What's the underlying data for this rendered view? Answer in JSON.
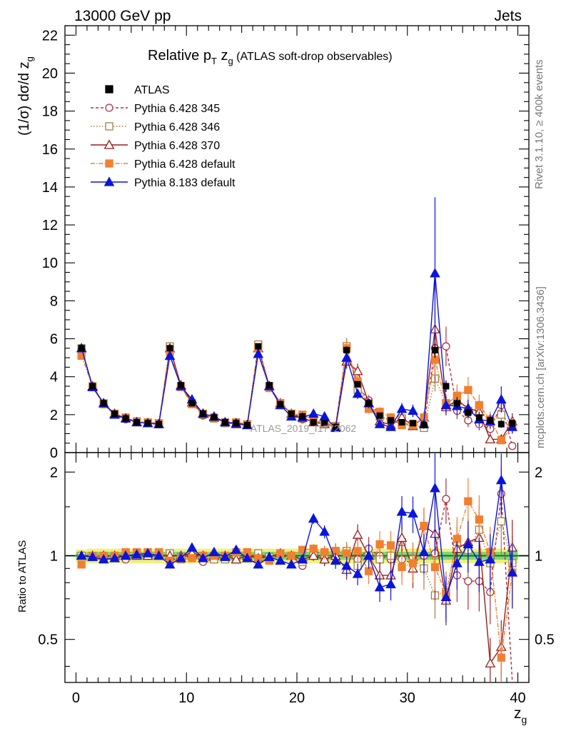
{
  "header": {
    "left": "13000 GeV pp",
    "right": "Jets"
  },
  "side_labels": {
    "rivet": "Rivet 3.1.10, ≥ 400k events",
    "mcplots": "mcplots.cern.ch [arXiv:1306.3436]"
  },
  "watermark": "ATLAS_2019_I1772062",
  "colors": {
    "atlas": "#000000",
    "p345": "#b03040",
    "p346": "#a08040",
    "p370": "#9b1b1b",
    "p6def": "#f08030",
    "p8": "#0a14dc",
    "band_inner": "#7cd67c",
    "band_outer": "#f0f07a",
    "ratio_line": "#1a6e1a"
  },
  "chart_data": {
    "type": "line",
    "title_parts": {
      "main": "Relative p",
      "sub1": "T",
      "mid": " z",
      "sub2": "g",
      "tail": " (ATLAS soft-drop observables)"
    },
    "ylabel_parts": {
      "main": "(1/σ) dσ/d z",
      "sub": "g"
    },
    "xlabel_parts": {
      "main": "z",
      "sub": "g"
    },
    "ratio_ylabel": "Ratio to ATLAS",
    "xlim": [
      -1,
      41
    ],
    "ylim": [
      0,
      22.5
    ],
    "ratio_ylim": [
      0.35,
      2.35
    ],
    "x_ticks": [
      0,
      10,
      20,
      30,
      40
    ],
    "x_tick_labels": [
      "0",
      "10",
      "20",
      "30",
      "40"
    ],
    "y_ticks": [
      0,
      2,
      4,
      6,
      8,
      10,
      12,
      14,
      16,
      18,
      20,
      22
    ],
    "y_tick_labels": [
      "0",
      "2",
      "4",
      "6",
      "8",
      "10",
      "12",
      "14",
      "16",
      "18",
      "20",
      "22"
    ],
    "ratio_ticks": [
      0.5,
      1,
      2
    ],
    "ratio_tick_labels": [
      "0.5",
      "1",
      "2"
    ],
    "x": [
      0.5,
      1.5,
      2.5,
      3.5,
      4.5,
      5.5,
      6.5,
      7.5,
      8.5,
      9.5,
      10.5,
      11.5,
      12.5,
      13.5,
      14.5,
      15.5,
      16.5,
      17.5,
      18.5,
      19.5,
      20.5,
      21.5,
      22.5,
      23.5,
      24.5,
      25.5,
      26.5,
      27.5,
      28.5,
      29.5,
      30.5,
      31.5,
      32.5,
      33.5,
      34.5,
      35.5,
      36.5,
      37.5,
      38.5,
      39.5
    ],
    "reference": {
      "name": "ATLAS",
      "values": [
        5.5,
        3.5,
        2.6,
        2.05,
        1.8,
        1.6,
        1.55,
        1.5,
        5.5,
        3.55,
        2.6,
        2.05,
        1.85,
        1.6,
        1.55,
        1.45,
        5.6,
        3.55,
        2.55,
        2.05,
        1.9,
        1.6,
        1.55,
        1.35,
        5.4,
        3.6,
        2.6,
        1.95,
        1.7,
        1.6,
        1.55,
        1.45,
        5.4,
        3.5,
        2.6,
        2.1,
        1.85,
        1.7,
        1.5,
        1.55
      ],
      "errors": [
        0.1,
        0.08,
        0.06,
        0.05,
        0.05,
        0.05,
        0.05,
        0.05,
        0.12,
        0.08,
        0.06,
        0.05,
        0.05,
        0.05,
        0.05,
        0.05,
        0.15,
        0.1,
        0.07,
        0.06,
        0.06,
        0.06,
        0.06,
        0.06,
        0.2,
        0.15,
        0.12,
        0.1,
        0.1,
        0.1,
        0.1,
        0.1,
        0.4,
        0.3,
        0.25,
        0.2,
        0.2,
        0.2,
        0.2,
        0.2
      ]
    },
    "series": [
      {
        "name": "Pythia 6.428 345",
        "key": "p345",
        "marker": "circle-open",
        "dash": "4,3",
        "values": [
          5.5,
          3.45,
          2.6,
          2.0,
          1.75,
          1.6,
          1.55,
          1.5,
          5.55,
          3.5,
          2.6,
          1.95,
          1.8,
          1.6,
          1.55,
          1.45,
          5.55,
          3.5,
          2.6,
          2.05,
          1.75,
          1.65,
          1.6,
          1.4,
          5.5,
          3.5,
          2.75,
          1.95,
          1.65,
          1.55,
          1.45,
          1.45,
          5.5,
          5.6,
          2.2,
          1.7,
          1.5,
          1.25,
          2.5,
          0.35
        ],
        "ratio": [
          1.0,
          0.99,
          1.0,
          0.98,
          0.97,
          1.0,
          1.0,
          1.0,
          1.01,
          0.99,
          1.0,
          0.95,
          0.97,
          1.0,
          1.0,
          1.0,
          0.99,
          0.99,
          1.02,
          1.0,
          0.92,
          1.03,
          1.03,
          1.04,
          1.02,
          0.97,
          1.06,
          1.0,
          0.97,
          0.97,
          0.94,
          1.0,
          1.02,
          1.6,
          0.85,
          0.81,
          0.81,
          0.74,
          1.67,
          0.23
        ]
      },
      {
        "name": "Pythia 6.428 346",
        "key": "p346",
        "marker": "square-open",
        "dash": "1.5,2.5",
        "values": [
          5.5,
          3.45,
          2.55,
          2.0,
          1.8,
          1.6,
          1.55,
          1.5,
          5.6,
          3.5,
          2.6,
          2.0,
          1.8,
          1.55,
          1.5,
          1.45,
          5.7,
          3.5,
          2.6,
          2.05,
          1.8,
          1.65,
          1.5,
          1.4,
          5.6,
          3.3,
          2.6,
          1.9,
          1.7,
          1.8,
          1.5,
          1.3,
          3.9,
          2.6,
          2.9,
          2.2,
          2.3,
          1.6,
          2.0,
          1.45
        ],
        "ratio": [
          1.0,
          0.99,
          0.98,
          0.98,
          1.0,
          1.0,
          1.0,
          1.0,
          1.02,
          0.99,
          1.0,
          0.98,
          0.97,
          0.97,
          0.97,
          1.0,
          1.02,
          0.99,
          1.02,
          1.0,
          0.95,
          1.03,
          0.97,
          1.04,
          1.04,
          0.92,
          1.0,
          0.97,
          1.0,
          1.12,
          0.97,
          0.9,
          0.72,
          0.74,
          1.12,
          1.05,
          1.24,
          0.94,
          1.33,
          0.94
        ]
      },
      {
        "name": "Pythia 6.428 370",
        "key": "p370",
        "marker": "triangle-open",
        "dash": "",
        "values": [
          5.5,
          3.5,
          2.6,
          2.05,
          1.8,
          1.6,
          1.55,
          1.5,
          5.5,
          3.55,
          2.65,
          2.05,
          1.85,
          1.6,
          1.5,
          1.45,
          5.5,
          3.5,
          2.6,
          2.05,
          1.85,
          1.6,
          1.5,
          1.35,
          4.8,
          4.3,
          2.6,
          1.65,
          1.45,
          1.85,
          1.4,
          1.85,
          6.5,
          2.4,
          2.75,
          2.35,
          2.15,
          0.7,
          0.7,
          1.65
        ],
        "ratio": [
          1.0,
          1.0,
          1.0,
          1.0,
          1.0,
          1.0,
          1.0,
          1.0,
          1.0,
          1.0,
          1.02,
          1.0,
          1.0,
          1.0,
          0.97,
          1.0,
          0.98,
          0.99,
          1.02,
          1.0,
          0.97,
          1.0,
          0.97,
          1.0,
          0.89,
          1.19,
          1.0,
          0.85,
          0.85,
          1.16,
          0.9,
          1.28,
          1.2,
          0.69,
          1.06,
          1.12,
          1.16,
          0.41,
          0.47,
          1.07
        ]
      },
      {
        "name": "Pythia 6.428 default",
        "key": "p6def",
        "marker": "square-filled",
        "dash": "6,2,1.5,2",
        "values": [
          5.1,
          3.5,
          2.6,
          2.05,
          1.85,
          1.65,
          1.6,
          1.55,
          5.3,
          3.45,
          2.55,
          2.05,
          1.85,
          1.6,
          1.6,
          1.5,
          5.5,
          3.4,
          2.6,
          2.05,
          2.0,
          1.7,
          1.6,
          1.4,
          5.5,
          3.75,
          2.3,
          2.15,
          1.85,
          1.45,
          1.45,
          1.85,
          4.9,
          2.55,
          3.0,
          3.3,
          2.5,
          1.75,
          0.65,
          1.35
        ],
        "ratio": [
          0.93,
          1.0,
          1.0,
          1.0,
          1.03,
          1.03,
          1.03,
          1.03,
          0.96,
          0.97,
          0.98,
          1.0,
          1.0,
          1.0,
          1.03,
          1.03,
          0.98,
          0.96,
          1.02,
          1.0,
          1.05,
          1.06,
          1.03,
          1.04,
          1.02,
          1.04,
          0.88,
          1.1,
          1.09,
          0.91,
          0.94,
          1.28,
          0.91,
          0.73,
          1.15,
          1.57,
          1.35,
          1.03,
          0.43,
          0.87
        ]
      },
      {
        "name": "Pythia 8.183 default",
        "key": "p8",
        "marker": "triangle-filled",
        "dash": "",
        "values": [
          5.5,
          3.45,
          2.6,
          2.0,
          1.8,
          1.6,
          1.55,
          1.5,
          5.1,
          3.5,
          2.8,
          2.05,
          1.9,
          1.6,
          1.55,
          1.45,
          5.2,
          3.5,
          2.5,
          1.9,
          1.85,
          2.05,
          1.9,
          1.3,
          5.0,
          3.1,
          2.6,
          1.5,
          1.35,
          2.3,
          2.2,
          1.5,
          9.45,
          2.5,
          2.45,
          2.3,
          1.75,
          1.65,
          2.8,
          1.35
        ],
        "ratio": [
          1.0,
          0.99,
          0.97,
          0.98,
          1.0,
          1.01,
          1.02,
          1.0,
          0.93,
          0.98,
          1.07,
          0.98,
          1.03,
          0.99,
          1.05,
          0.98,
          0.93,
          0.99,
          0.96,
          0.93,
          0.97,
          1.36,
          1.22,
          0.96,
          0.92,
          0.86,
          1.0,
          0.77,
          0.79,
          1.44,
          1.42,
          1.03,
          1.75,
          0.71,
          0.94,
          1.1,
          0.95,
          0.97,
          1.87,
          0.87
        ]
      }
    ]
  }
}
